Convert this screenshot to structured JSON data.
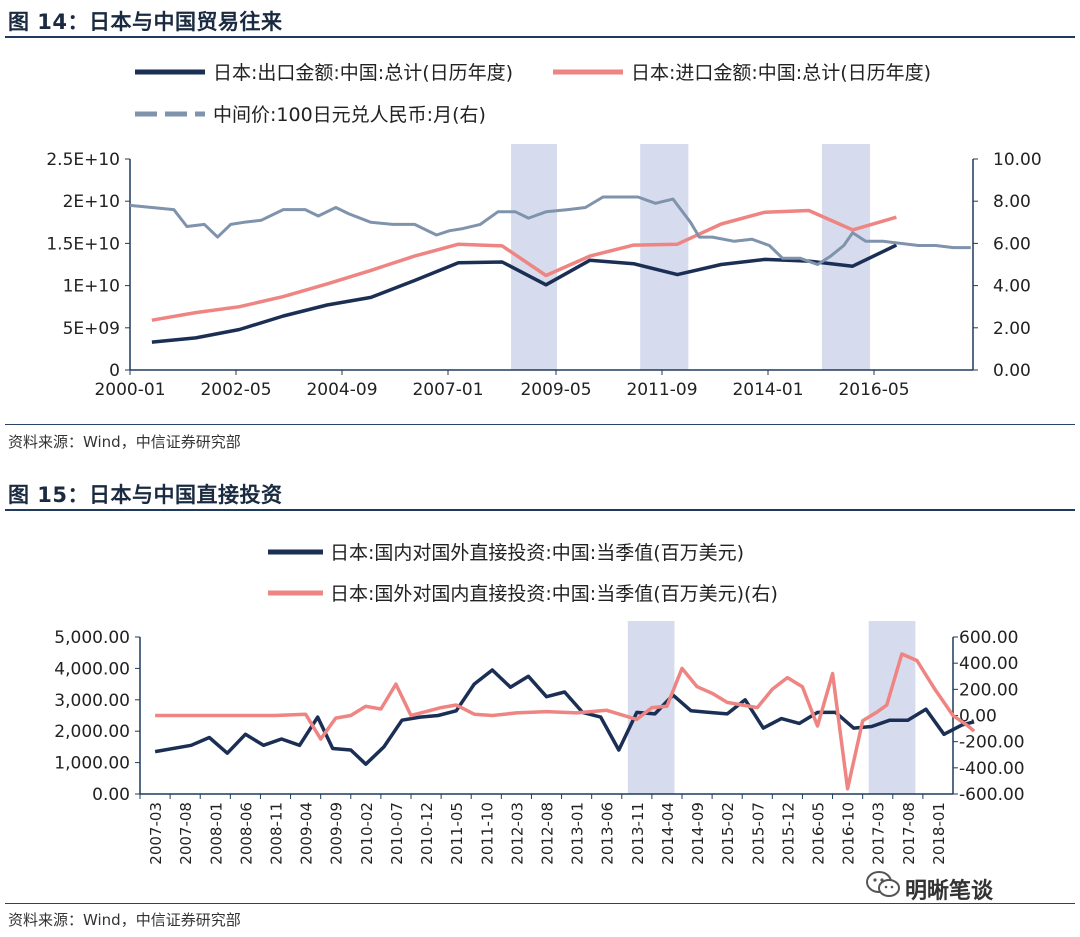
{
  "figure1": {
    "title": "图 14：日本与中国贸易往来",
    "source": "资料来源：Wind，中信证券研究部"
  },
  "figure2": {
    "title": "图 15：日本与中国直接投资",
    "source": "资料来源：Wind，中信证券研究部"
  },
  "watermark": {
    "text": "明晰笔谈",
    "icon": "wechat-icon"
  },
  "colors": {
    "navy": "#1b2f55",
    "pink": "#ee8582",
    "gray": "#7f93ac",
    "shade": "#d6dcee",
    "axis": "#1e3a5c"
  },
  "chart_data": [
    {
      "type": "line",
      "legend": [
        {
          "name": "日本:出口金额:中国:总计(日历年度)",
          "style": "solid",
          "color": "#1b2f55"
        },
        {
          "name": "日本:进口金额:中国:总计(日历年度)",
          "style": "solid",
          "color": "#ee8582"
        },
        {
          "name": "中间价:100日元兑人民币:月(右)",
          "style": "dashed",
          "color": "#7f93ac"
        }
      ],
      "x_ticks": [
        "2000-01",
        "2002-05",
        "2004-09",
        "2007-01",
        "2009-05",
        "2011-09",
        "2014-01",
        "2016-05"
      ],
      "x_range": [
        2000.0,
        2019.25
      ],
      "y_left": {
        "ticks": [
          "0",
          "5E+09",
          "1E+10",
          "1.5E+10",
          "2E+10",
          "2.5E+10"
        ],
        "range": [
          0,
          25000000000
        ]
      },
      "y_right": {
        "ticks": [
          "0.00",
          "2.00",
          "4.00",
          "6.00",
          "8.00",
          "10.00"
        ],
        "range": [
          0,
          10
        ]
      },
      "shaded": [
        [
          2008.7,
          2009.75
        ],
        [
          2011.65,
          2012.75
        ],
        [
          2015.8,
          2016.9
        ]
      ],
      "series": [
        {
          "name": "日本:出口金额:中国:总计(日历年度)",
          "axis": "left",
          "color": "#1b2f55",
          "x": [
            2000.5,
            2001.5,
            2002.5,
            2003.5,
            2004.5,
            2005.5,
            2006.5,
            2007.5,
            2008.5,
            2009.5,
            2010.5,
            2011.5,
            2012.5,
            2013.5,
            2014.5,
            2015.5,
            2016.5,
            2017.5
          ],
          "y": [
            3300000000,
            3800000000,
            4800000000,
            6400000000,
            7700000000,
            8600000000,
            10600000000,
            12700000000,
            12800000000,
            10100000000,
            13000000000,
            12600000000,
            11300000000,
            12500000000,
            13100000000,
            12900000000,
            12300000000,
            14800000000
          ]
        },
        {
          "name": "日本:进口金额:中国:总计(日历年度)",
          "axis": "left",
          "color": "#ee8582",
          "x": [
            2000.5,
            2001.5,
            2002.5,
            2003.5,
            2004.5,
            2005.5,
            2006.5,
            2007.5,
            2008.5,
            2009.5,
            2010.5,
            2011.5,
            2012.5,
            2013.5,
            2014.5,
            2015.5,
            2016.5,
            2017.5
          ],
          "y": [
            5900000000,
            6800000000,
            7500000000,
            8700000000,
            10200000000,
            11800000000,
            13500000000,
            14900000000,
            14700000000,
            11200000000,
            13500000000,
            14800000000,
            14900000000,
            17300000000,
            18700000000,
            18900000000,
            16600000000,
            18100000000
          ]
        },
        {
          "name": "中间价:100日元兑人民币:月(右)",
          "axis": "right",
          "color": "#7f93ac",
          "style": "dashed",
          "x": [
            2000.0,
            2000.5,
            2001.0,
            2001.3,
            2001.7,
            2002.0,
            2002.3,
            2002.6,
            2003.0,
            2003.5,
            2004.0,
            2004.3,
            2004.7,
            2005.0,
            2005.5,
            2006.0,
            2006.5,
            2007.0,
            2007.3,
            2007.6,
            2008.0,
            2008.4,
            2008.8,
            2009.1,
            2009.5,
            2010.0,
            2010.4,
            2010.8,
            2011.2,
            2011.6,
            2012.0,
            2012.4,
            2012.8,
            2013.0,
            2013.3,
            2013.8,
            2014.2,
            2014.6,
            2014.9,
            2015.3,
            2015.7,
            2016.0,
            2016.3,
            2016.5,
            2016.8,
            2017.2,
            2017.6,
            2018.0,
            2018.4,
            2018.8,
            2019.2
          ],
          "y": [
            7.8,
            7.7,
            7.6,
            6.8,
            6.9,
            6.3,
            6.9,
            7.0,
            7.1,
            7.6,
            7.6,
            7.3,
            7.7,
            7.4,
            7.0,
            6.9,
            6.9,
            6.4,
            6.6,
            6.7,
            6.9,
            7.5,
            7.5,
            7.2,
            7.5,
            7.6,
            7.7,
            8.2,
            8.2,
            8.2,
            7.9,
            8.1,
            7.0,
            6.3,
            6.3,
            6.1,
            6.2,
            5.9,
            5.3,
            5.3,
            5.0,
            5.4,
            5.9,
            6.5,
            6.1,
            6.1,
            6.0,
            5.9,
            5.9,
            5.8,
            5.8
          ]
        }
      ]
    },
    {
      "type": "line",
      "legend": [
        {
          "name": "日本:国内对国外直接投资:中国:当季值(百万美元)",
          "style": "solid",
          "color": "#1b2f55"
        },
        {
          "name": "日本:国外对国内直接投资:中国:当季值(百万美元)(右)",
          "style": "solid",
          "color": "#ee8582"
        }
      ],
      "x_ticks": [
        "2007-03",
        "2007-08",
        "2008-01",
        "2008-06",
        "2008-11",
        "2009-04",
        "2009-09",
        "2010-02",
        "2010-07",
        "2010-12",
        "2011-05",
        "2011-10",
        "2012-03",
        "2012-08",
        "2013-01",
        "2013-06",
        "2013-11",
        "2014-04",
        "2014-09",
        "2015-02",
        "2015-07",
        "2015-12",
        "2016-05",
        "2016-10",
        "2017-03",
        "2017-08",
        "2018-01"
      ],
      "y_left": {
        "ticks": [
          "0.00",
          "1,000.00",
          "2,000.00",
          "3,000.00",
          "4,000.00",
          "5,000.00"
        ],
        "range": [
          0,
          5000
        ]
      },
      "y_right": {
        "ticks": [
          "-600.00",
          "-400.00",
          "-200.00",
          "0.00",
          "200.00",
          "400.00",
          "600.00"
        ],
        "range": [
          -600,
          600
        ]
      },
      "shaded": [
        [
          15.7,
          17.25
        ],
        [
          23.7,
          25.25
        ]
      ],
      "series": [
        {
          "name": "日本:国内对国外直接投资:中国:当季值(百万美元)",
          "axis": "left",
          "color": "#1b2f55",
          "x": [
            0,
            1.2,
            1.8,
            2.4,
            3.0,
            3.6,
            4.2,
            4.8,
            5.4,
            5.9,
            6.5,
            7.0,
            7.6,
            8.2,
            8.8,
            9.4,
            10.0,
            10.6,
            11.2,
            11.8,
            12.4,
            13.0,
            13.6,
            14.2,
            14.8,
            15.4,
            16.0,
            16.6,
            17.2,
            17.8,
            18.4,
            19.0,
            19.6,
            20.2,
            20.8,
            21.4,
            22.0,
            22.6,
            23.2,
            23.8,
            24.4,
            25.0,
            25.6,
            26.2,
            26.8,
            27.2
          ],
          "y": [
            1350,
            1550,
            1800,
            1300,
            1900,
            1550,
            1750,
            1550,
            2450,
            1450,
            1400,
            950,
            1500,
            2350,
            2450,
            2500,
            2650,
            3500,
            3950,
            3400,
            3750,
            3100,
            3250,
            2600,
            2450,
            1400,
            2600,
            2550,
            3150,
            2650,
            2600,
            2550,
            3000,
            2100,
            2400,
            2250,
            2600,
            2600,
            2100,
            2150,
            2350,
            2350,
            2700,
            1900,
            2200,
            2300
          ]
        },
        {
          "name": "日本:国外对国内直接投资:中国:当季值(百万美元)(右)",
          "axis": "right",
          "color": "#ee8582",
          "x": [
            0,
            1.0,
            2.0,
            3.0,
            4.0,
            5.0,
            5.5,
            6.0,
            6.5,
            7.0,
            7.5,
            8.0,
            8.5,
            9.0,
            9.5,
            10.0,
            10.6,
            11.2,
            12.0,
            13.0,
            14.0,
            15.0,
            16.0,
            16.5,
            17.0,
            17.5,
            18.0,
            18.5,
            19.0,
            19.5,
            20.0,
            20.5,
            21.0,
            21.5,
            22.0,
            22.5,
            23.0,
            23.5,
            24.0,
            24.3,
            24.8,
            25.3,
            25.9,
            26.5,
            27.0,
            27.2
          ],
          "y": [
            0,
            0,
            0,
            0,
            0,
            10,
            -180,
            -20,
            0,
            70,
            50,
            240,
            0,
            30,
            60,
            80,
            10,
            0,
            20,
            30,
            20,
            40,
            -30,
            60,
            70,
            360,
            220,
            170,
            100,
            80,
            60,
            200,
            290,
            220,
            -80,
            320,
            -560,
            -40,
            30,
            80,
            470,
            420,
            200,
            0,
            -80,
            -120
          ]
        }
      ]
    }
  ]
}
